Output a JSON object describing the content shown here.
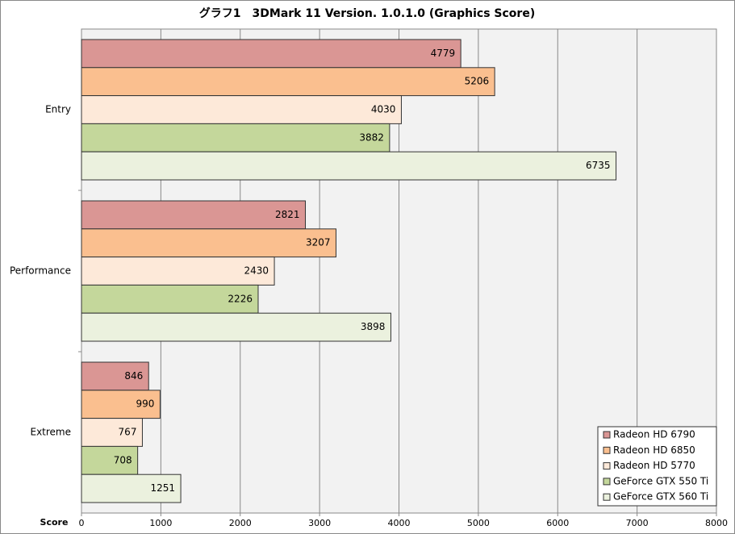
{
  "chart_data": {
    "type": "barh",
    "title": "グラフ1　3DMark 11 Version. 1.0.1.0 (Graphics Score)",
    "x_label": "Score",
    "categories": [
      "Entry",
      "Performance",
      "Extreme"
    ],
    "series": [
      {
        "name": "Radeon HD 6790",
        "color": "#da9694",
        "values": [
          4779,
          2821,
          846
        ]
      },
      {
        "name": "Radeon HD 6850",
        "color": "#fabf8f",
        "values": [
          5206,
          3207,
          990
        ]
      },
      {
        "name": "Radeon HD 5770",
        "color": "#fde9d9",
        "values": [
          4030,
          2430,
          767
        ]
      },
      {
        "name": "GeForce GTX 550 Ti",
        "color": "#c4d79b",
        "values": [
          3882,
          2226,
          708
        ]
      },
      {
        "name": "GeForce GTX 560 Ti",
        "color": "#ebf1de",
        "values": [
          6735,
          3898,
          1251
        ]
      }
    ],
    "xlim": [
      0,
      8000
    ],
    "xticks": [
      0,
      1000,
      2000,
      3000,
      4000,
      5000,
      6000,
      7000,
      8000
    ],
    "grid": true,
    "legend": "lower right"
  }
}
